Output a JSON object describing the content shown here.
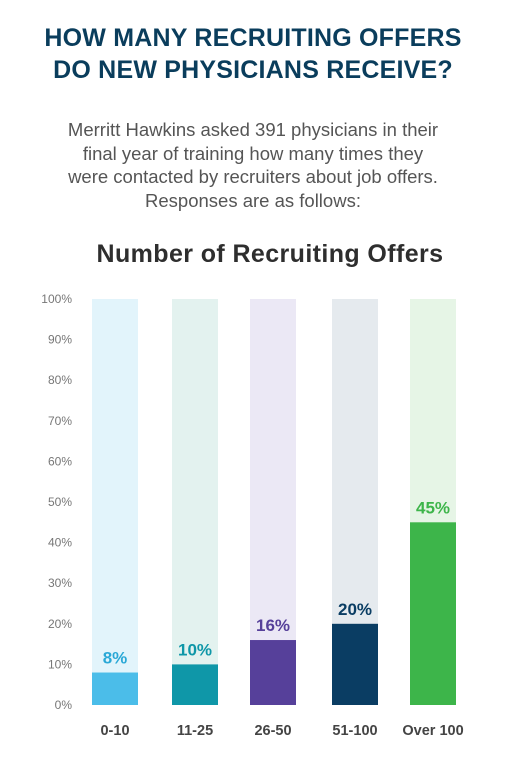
{
  "headline": {
    "line1": "HOW MANY RECRUITING OFFERS",
    "line2": "DO NEW PHYSICIANS RECEIVE?"
  },
  "intro": {
    "line1": "Merritt Hawkins asked 391 physicians in their",
    "line2": "final year of training how many times they",
    "line3": "were contacted by recruiters about job offers.",
    "line4": "Responses are as follows:"
  },
  "chart_data": {
    "type": "bar",
    "title": "Number of Recruiting Offers",
    "xlabel": "",
    "ylabel": "",
    "categories": [
      "0-10",
      "11-25",
      "26-50",
      "51-100",
      "Over 100"
    ],
    "values": [
      8,
      10,
      16,
      20,
      45
    ],
    "value_labels": [
      "8%",
      "10%",
      "16%",
      "20%",
      "45%"
    ],
    "ylim": [
      0,
      100
    ],
    "y_ticks": [
      "0%",
      "10%",
      "20%",
      "30%",
      "40%",
      "50%",
      "60%",
      "70%",
      "80%",
      "90%",
      "100%"
    ],
    "grid": false,
    "legend": "none",
    "colors": {
      "bars": [
        "#4bbde9",
        "#0f97a8",
        "#56409a",
        "#0a3d63",
        "#3db54a"
      ],
      "tracks": [
        "#e2f4fb",
        "#e3f2ef",
        "#ebe8f5",
        "#e5eaee",
        "#e6f5e6"
      ],
      "value_labels": [
        "#2aa8d6",
        "#0f97a8",
        "#56409a",
        "#0a3d63",
        "#3db54a"
      ]
    }
  }
}
